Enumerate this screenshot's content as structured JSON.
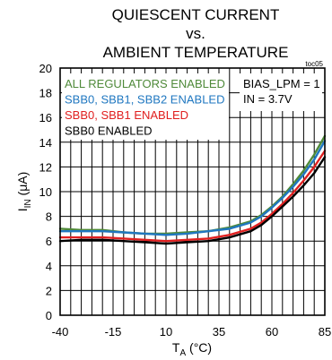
{
  "chart_data": {
    "type": "line",
    "title": "QUIESCENT CURRENT",
    "title_line2": "vs.",
    "title_line3": "AMBIENT TEMPERATURE",
    "corner_tag": "toc05",
    "xlabel": "T",
    "xlabel_sub": "A",
    "xlabel_unit": " (°C)",
    "ylabel": "I",
    "ylabel_sub": "IN",
    "ylabel_unit": " (μA)",
    "xlim": [
      -40,
      85
    ],
    "ylim": [
      0,
      20
    ],
    "x_ticks": [
      -40,
      -15,
      10,
      35,
      60,
      85
    ],
    "y_ticks": [
      0,
      2,
      4,
      6,
      8,
      10,
      12,
      14,
      16,
      18,
      20
    ],
    "grid": true,
    "legend_placement": "top-left",
    "annotation": [
      "BIAS_LPM = 1",
      "IN = 3.7V"
    ],
    "series": [
      {
        "name": "ALL REGULATORS ENABLED",
        "color": "#4f8a3a",
        "x": [
          -40,
          -30,
          -20,
          -10,
          0,
          10,
          20,
          30,
          40,
          50,
          55,
          60,
          65,
          70,
          75,
          80,
          85
        ],
        "y": [
          7.0,
          6.9,
          6.9,
          6.7,
          6.6,
          6.6,
          6.7,
          6.8,
          7.1,
          7.6,
          8.1,
          8.8,
          9.6,
          10.6,
          11.7,
          13.0,
          14.5
        ]
      },
      {
        "name": "SBB0, SBB1, SBB2 ENABLED",
        "color": "#1f77c0",
        "x": [
          -40,
          -30,
          -20,
          -10,
          0,
          10,
          20,
          30,
          40,
          50,
          55,
          60,
          65,
          70,
          75,
          80,
          85
        ],
        "y": [
          6.8,
          6.8,
          6.8,
          6.7,
          6.6,
          6.5,
          6.6,
          6.8,
          7.0,
          7.5,
          8.0,
          8.7,
          9.5,
          10.4,
          11.4,
          12.6,
          14.1
        ]
      },
      {
        "name": "SBB0, SBB1 ENABLED",
        "color": "#e02020",
        "x": [
          -40,
          -30,
          -20,
          -10,
          0,
          10,
          20,
          30,
          40,
          50,
          55,
          60,
          65,
          70,
          75,
          80,
          85
        ],
        "y": [
          6.3,
          6.3,
          6.3,
          6.2,
          6.1,
          6.0,
          6.1,
          6.2,
          6.5,
          7.0,
          7.5,
          8.2,
          9.0,
          9.9,
          10.9,
          12.0,
          13.3
        ]
      },
      {
        "name": "SBB0 ENABLED",
        "color": "#000000",
        "x": [
          -40,
          -30,
          -20,
          -10,
          0,
          10,
          20,
          30,
          40,
          50,
          55,
          60,
          65,
          70,
          75,
          80,
          85
        ],
        "y": [
          6.0,
          6.1,
          6.1,
          6.0,
          5.9,
          5.8,
          5.9,
          6.0,
          6.3,
          6.8,
          7.3,
          8.0,
          8.8,
          9.6,
          10.5,
          11.5,
          12.8
        ]
      }
    ]
  }
}
